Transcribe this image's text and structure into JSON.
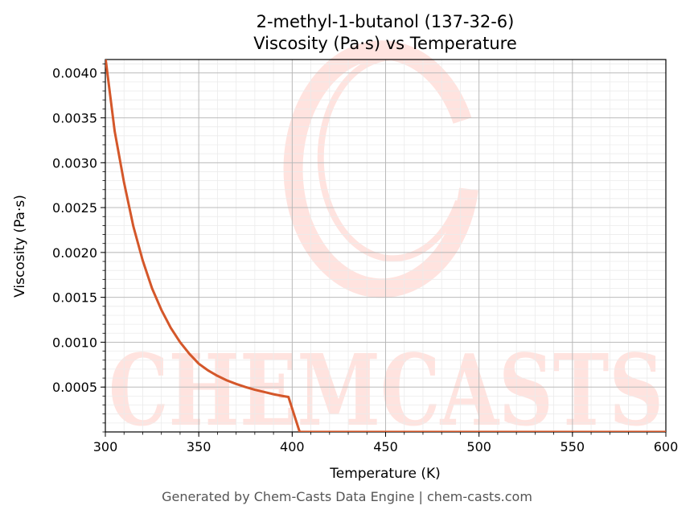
{
  "chart_data": {
    "type": "line",
    "title": "2-methyl-1-butanol (137-32-6)",
    "subtitle": "Viscosity (Pa·s) vs Temperature",
    "xlabel": "Temperature (K)",
    "ylabel": "Viscosity (Pa·s)",
    "xlim": [
      300,
      600
    ],
    "ylim": [
      0,
      0.00415
    ],
    "x_ticks": [
      300,
      350,
      400,
      450,
      500,
      550,
      600
    ],
    "y_ticks": [
      0.0005,
      0.001,
      0.0015,
      0.002,
      0.0025,
      0.003,
      0.0035,
      0.004
    ],
    "x_tick_labels": [
      "300",
      "350",
      "400",
      "450",
      "500",
      "550",
      "600"
    ],
    "y_tick_labels": [
      "0.0005",
      "0.0010",
      "0.0015",
      "0.0020",
      "0.0025",
      "0.0030",
      "0.0035",
      "0.0040"
    ],
    "grid": true,
    "series": [
      {
        "color": "#d4572a",
        "x": [
          300,
          305,
          310,
          315,
          320,
          325,
          330,
          335,
          340,
          345,
          350,
          355,
          360,
          365,
          370,
          375,
          380,
          385,
          390,
          395,
          398,
          404,
          600
        ],
        "y": [
          0.00418,
          0.00335,
          0.00278,
          0.00229,
          0.00191,
          0.0016,
          0.00136,
          0.00116,
          0.001,
          0.00087,
          0.00076,
          0.000685,
          0.000625,
          0.000575,
          0.000535,
          0.0005,
          0.00047,
          0.000445,
          0.00042,
          0.0004,
          0.00039,
          0.0,
          0.0
        ]
      }
    ]
  },
  "watermark": "CHEMCASTS",
  "footer": "Generated by Chem-Casts Data Engine | chem-casts.com"
}
